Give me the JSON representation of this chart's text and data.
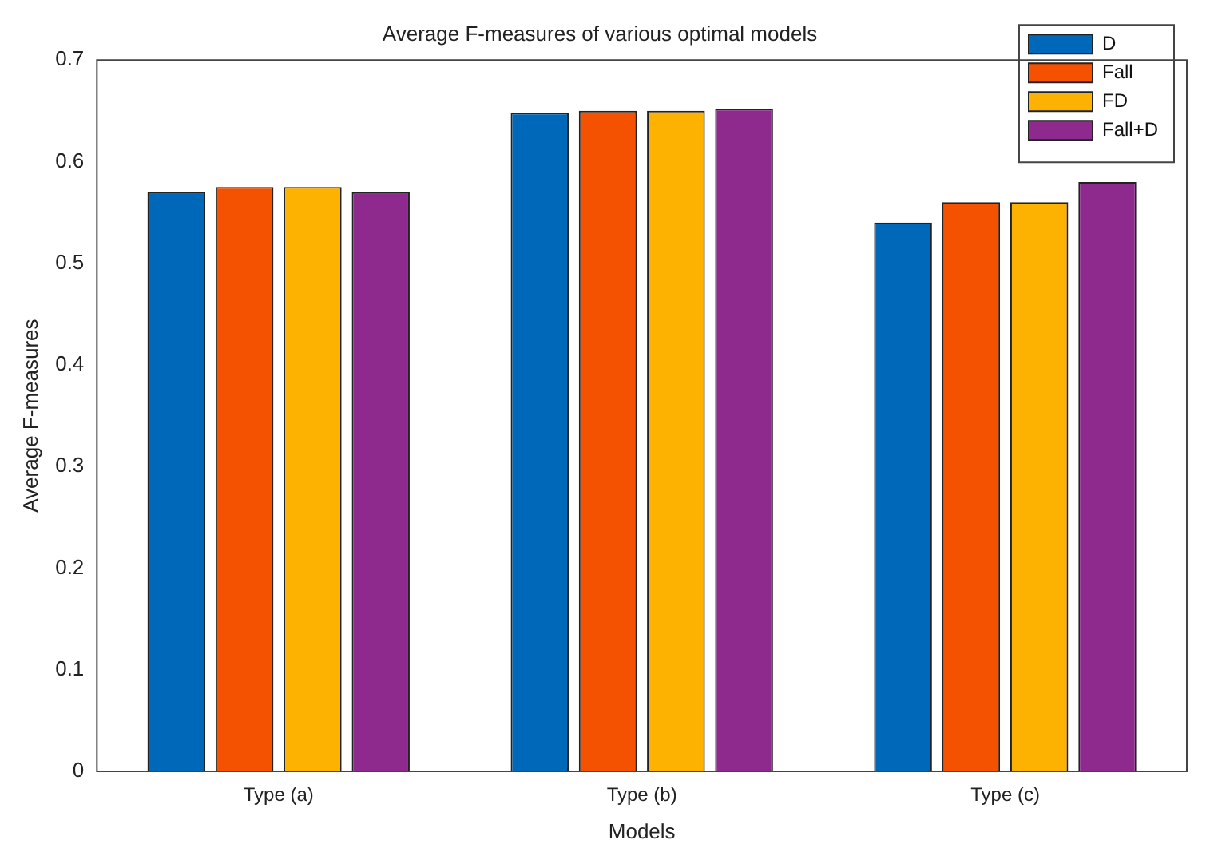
{
  "chart_data": {
    "type": "bar",
    "title": "Average F-measures of various optimal models",
    "xlabel": "Models",
    "ylabel": "Average F-measures",
    "categories": [
      "Type (a)",
      "Type (b)",
      "Type (c)"
    ],
    "series": [
      {
        "name": "D",
        "color": "#0068b8",
        "values": [
          0.57,
          0.648,
          0.54
        ]
      },
      {
        "name": "Fall",
        "color": "#f45100",
        "values": [
          0.575,
          0.65,
          0.56
        ]
      },
      {
        "name": "FD",
        "color": "#fdb100",
        "values": [
          0.575,
          0.65,
          0.56
        ]
      },
      {
        "name": "Fall+D",
        "color": "#8e2a8e",
        "values": [
          0.57,
          0.652,
          0.58
        ]
      }
    ],
    "ylim": [
      0,
      0.7
    ],
    "yticks": [
      0,
      0.1,
      0.2,
      0.3,
      0.4,
      0.5,
      0.6,
      0.7
    ],
    "grid": false,
    "legend": "top right"
  }
}
